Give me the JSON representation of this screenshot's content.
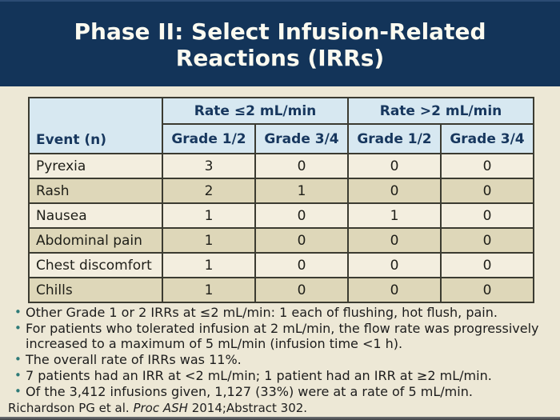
{
  "slide": {
    "title_line1": "Phase II: Select Infusion-Related",
    "title_line2": "Reactions (IRRs)",
    "citation_prefix": "Richardson PG et al. ",
    "citation_italic": "Proc ASH",
    "citation_suffix": " 2014;Abstract 302."
  },
  "table": {
    "corner_header": "Event (n)",
    "group_headers": [
      "Rate ≤2 mL/min",
      "Rate >2 mL/min"
    ],
    "sub_headers": [
      "Grade 1/2",
      "Grade 3/4",
      "Grade 1/2",
      "Grade 3/4"
    ],
    "rows": [
      {
        "event": "Pyrexia",
        "values": [
          "3",
          "0",
          "0",
          "0"
        ]
      },
      {
        "event": "Rash",
        "values": [
          "2",
          "1",
          "0",
          "0"
        ]
      },
      {
        "event": "Nausea",
        "values": [
          "1",
          "0",
          "1",
          "0"
        ]
      },
      {
        "event": "Abdominal pain",
        "values": [
          "1",
          "0",
          "0",
          "0"
        ]
      },
      {
        "event": "Chest discomfort",
        "values": [
          "1",
          "0",
          "0",
          "0"
        ]
      },
      {
        "event": "Chills",
        "values": [
          "1",
          "0",
          "0",
          "0"
        ]
      }
    ]
  },
  "bullets": [
    "Other Grade 1 or 2 IRRs at ≤2 mL/min: 1 each of flushing, hot flush, pain.",
    "For patients who tolerated infusion at 2 mL/min, the flow rate was progressively increased to a maximum of 5 mL/min (infusion time <1 h).",
    "The overall rate of IRRs was 11%.",
    "7 patients had an IRR at <2 mL/min; 1 patient had an IRR at ≥2 mL/min.",
    "Of the 3,412 infusions given, 1,127 (33%) were at a rate of 5 mL/min."
  ],
  "colors": {
    "header_navy": "#133459",
    "title_text": "#fbfaf0",
    "body_background": "#ede8d6",
    "table_header_blue": "#d7e8f1",
    "table_header_text_navy": "#17375e",
    "row_light": "#f3eedf",
    "row_dark": "#ded7b9",
    "table_border": "#3b3b31",
    "bullet_dot_teal": "#2e7a78",
    "body_text": "#1c1c1c"
  }
}
